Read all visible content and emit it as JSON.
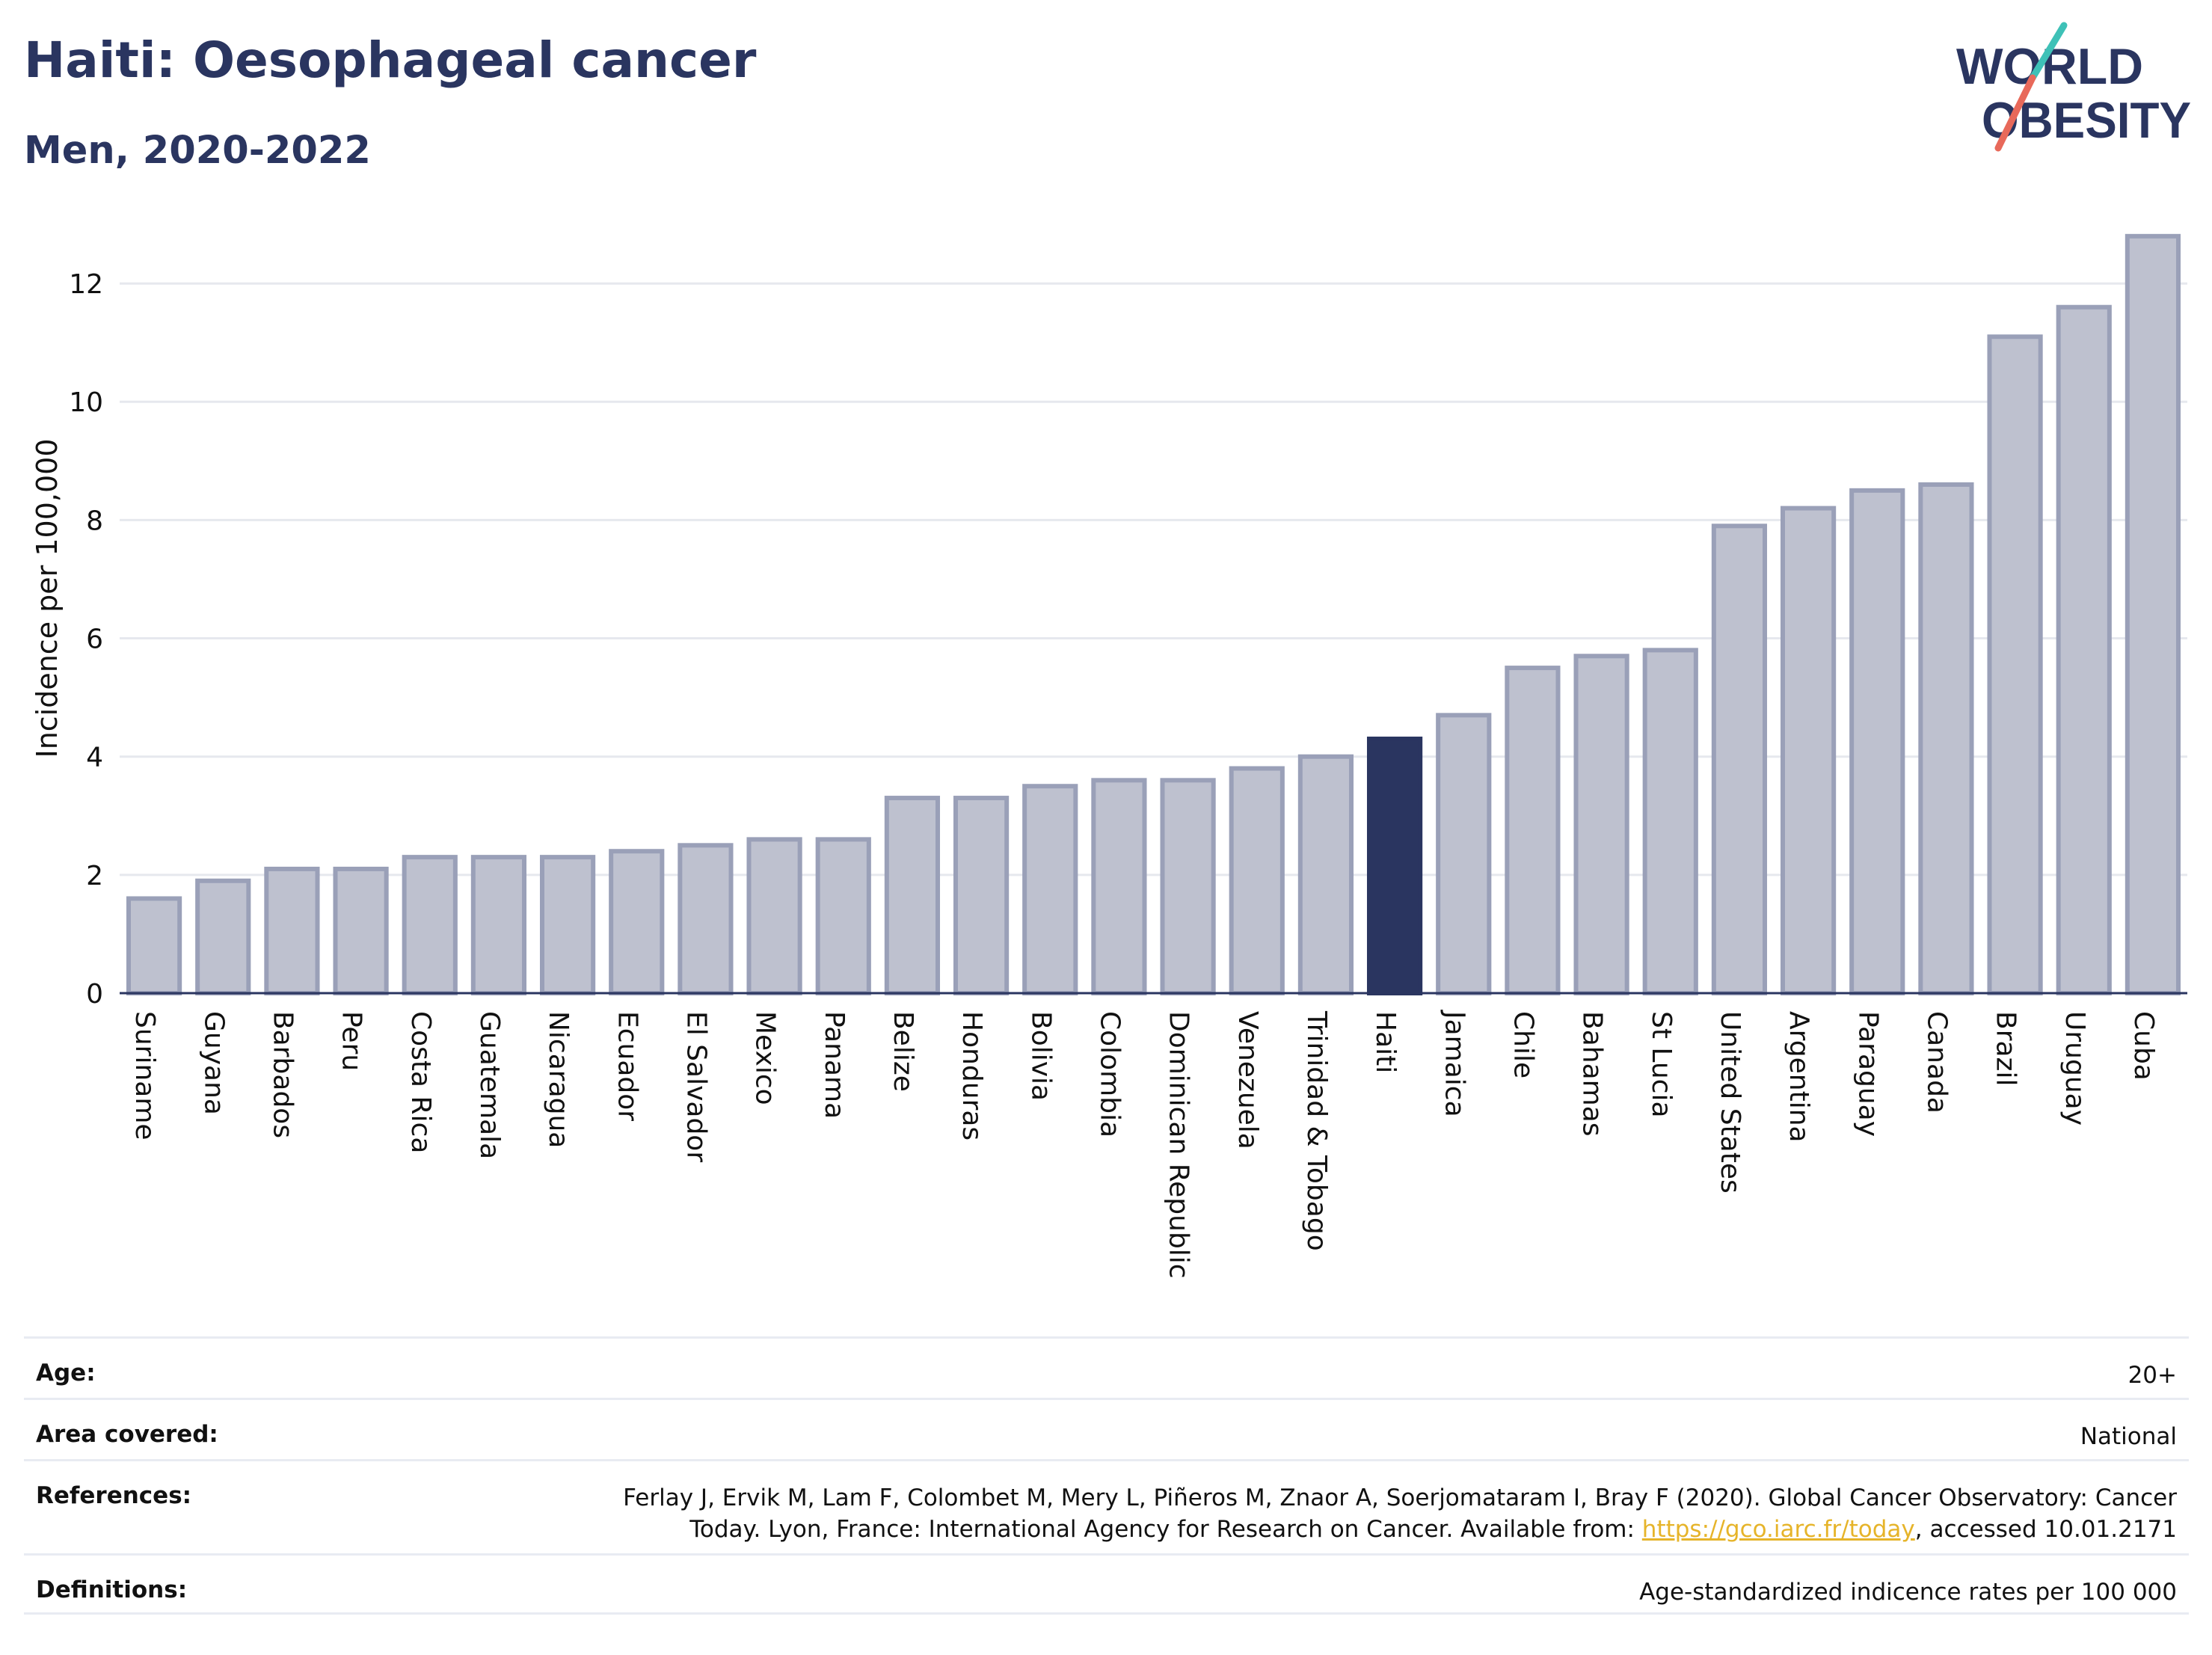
{
  "header": {
    "title": "Haiti: Oesophageal cancer",
    "subtitle": "Men, 2020-2022"
  },
  "logo": {
    "line1": "WORLD",
    "line2": "OBESITY"
  },
  "colors": {
    "highlight": "#2a3560",
    "bar_fill": "#bec1cf",
    "bar_stroke": "#9aa0b8",
    "logo_text": "#2a3560",
    "logo_slash_teal": "#3ec1b7",
    "logo_slash_red": "#e8695a",
    "link": "#e6b42a"
  },
  "chart_data": {
    "type": "bar",
    "ylabel": "Incidence per 100,000",
    "ylim": [
      0,
      13
    ],
    "yticks": [
      0,
      2,
      4,
      6,
      8,
      10,
      12
    ],
    "grid": true,
    "highlight": "Haiti",
    "categories": [
      "Suriname",
      "Guyana",
      "Barbados",
      "Peru",
      "Costa Rica",
      "Guatemala",
      "Nicaragua",
      "Ecuador",
      "El Salvador",
      "Mexico",
      "Panama",
      "Belize",
      "Honduras",
      "Bolivia",
      "Colombia",
      "Dominican Republic",
      "Venezuela",
      "Trinidad & Tobago",
      "Haiti",
      "Jamaica",
      "Chile",
      "Bahamas",
      "St Lucia",
      "United States",
      "Argentina",
      "Paraguay",
      "Canada",
      "Brazil",
      "Uruguay",
      "Cuba"
    ],
    "values": [
      1.6,
      1.9,
      2.1,
      2.1,
      2.3,
      2.3,
      2.3,
      2.4,
      2.5,
      2.6,
      2.6,
      3.3,
      3.3,
      3.5,
      3.6,
      3.6,
      3.8,
      4.0,
      4.3,
      4.7,
      5.5,
      5.7,
      5.8,
      7.9,
      8.2,
      8.5,
      8.6,
      11.1,
      11.6,
      12.8
    ]
  },
  "meta": {
    "age": {
      "label": "Age:",
      "value": "20+"
    },
    "area": {
      "label": "Area covered:",
      "value": "National"
    },
    "references": {
      "label": "References:",
      "line1": "Ferlay J, Ervik M, Lam F, Colombet M, Mery L, Piñeros M, Znaor A, Soerjomataram I, Bray F (2020). Global Cancer Observatory: Cancer",
      "line2_prefix": "Today. Lyon, France: International Agency for Research on Cancer. Available from: ",
      "link": "https://gco.iarc.fr/today",
      "line2_suffix": ", accessed 10.01.2171"
    },
    "definitions": {
      "label": "Definitions:",
      "value": "Age-standardized indicence rates per 100 000"
    }
  }
}
